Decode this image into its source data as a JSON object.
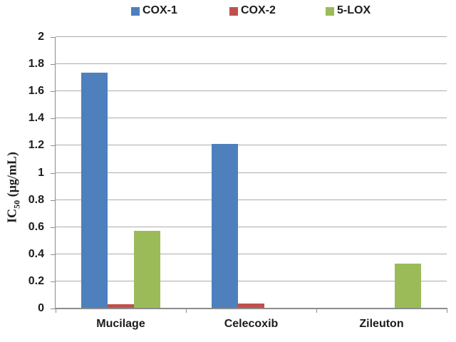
{
  "chart_data": {
    "type": "bar",
    "title": "",
    "categories": [
      "Mucilage",
      "Celecoxib",
      "Zileuton"
    ],
    "series": [
      {
        "name": "COX-1",
        "color": "#4D80BC",
        "values": [
          1.74,
          1.21,
          0
        ]
      },
      {
        "name": "COX-2",
        "color": "#C0504D",
        "values": [
          0.03,
          0.035,
          0
        ]
      },
      {
        "name": "5-LOX",
        "color": "#9BBB59",
        "values": [
          0.57,
          0,
          0.33
        ]
      }
    ],
    "xlabel": "",
    "ylabel": "IC50 (µg/mL)",
    "ylabel_parts": {
      "prefix": "IC",
      "subscript": "50",
      "suffix": " (µg/mL)"
    },
    "ylim": [
      0,
      2
    ],
    "ytick_step": 0.2,
    "yticks": [
      {
        "value": 2,
        "label": "2"
      },
      {
        "value": 1.8,
        "label": "1.8"
      },
      {
        "value": 1.6,
        "label": "1.6"
      },
      {
        "value": 1.4,
        "label": "1.4"
      },
      {
        "value": 1.2,
        "label": "1.2"
      },
      {
        "value": 1,
        "label": "1"
      },
      {
        "value": 0.8,
        "label": "0.8"
      },
      {
        "value": 0.6,
        "label": "0.6"
      },
      {
        "value": 0.4,
        "label": "0.4"
      },
      {
        "value": 0.2,
        "label": "0.2"
      },
      {
        "value": 0,
        "label": "0"
      }
    ],
    "grid": "horizontal",
    "legend_position": "top",
    "colors": {
      "gridline": "#ACACAC",
      "axis": "#8C8C8C",
      "text": "#1C1C1C",
      "background": "#FFFFFF"
    }
  }
}
